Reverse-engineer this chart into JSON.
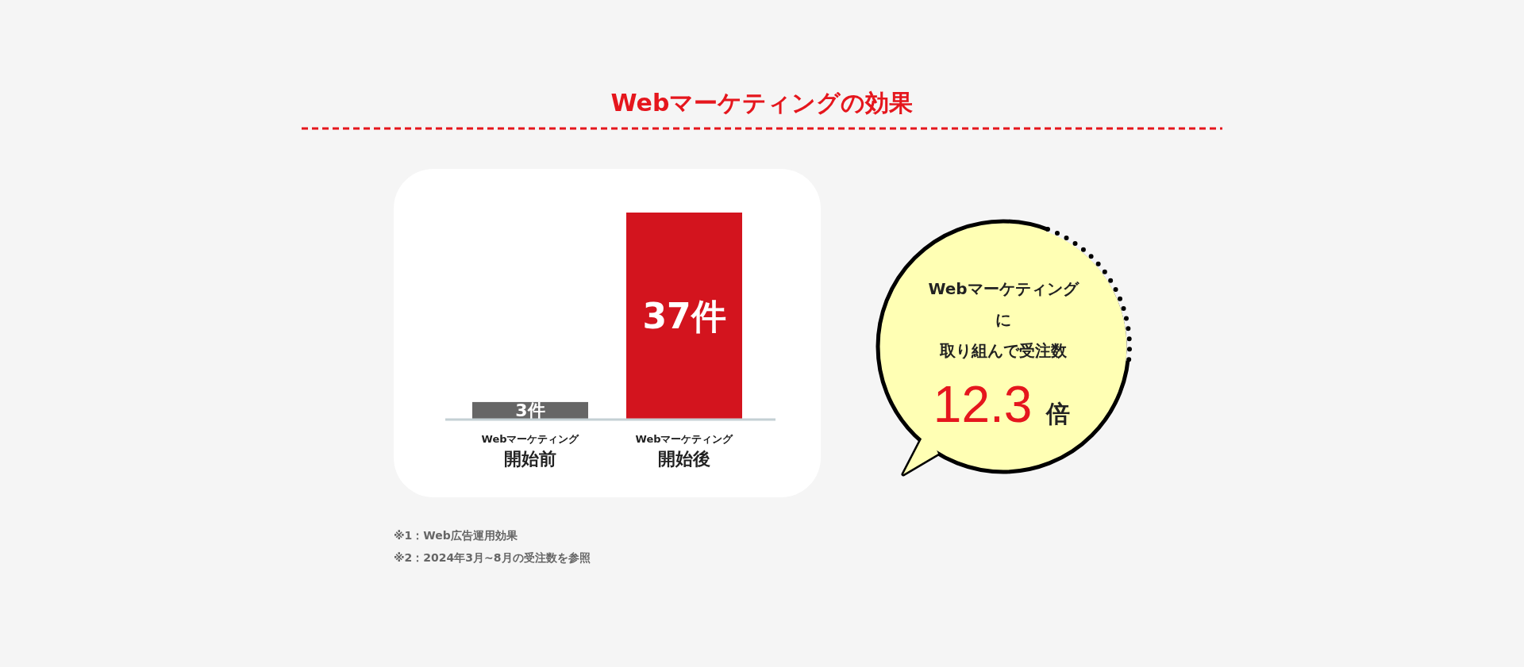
{
  "chart_data": [
    {
      "type": "bar",
      "title": "Webマーケティングの効果",
      "categories": [
        "Webマーケティング開始前",
        "Webマーケティング開始後"
      ],
      "values": [
        3,
        37
      ],
      "colors": [
        "#666666",
        "#d3141e"
      ],
      "value_labels": [
        "3件",
        "37件"
      ],
      "annotations": [
        "※1：Web広告運用効果",
        "※2：2024年3月~8月の受注数を参照"
      ]
    },
    {
      "type": "other",
      "annotations": [
        "Webマーケティング",
        "に",
        "取り組んで受注数",
        "12.3 倍"
      ]
    }
  ]
}
